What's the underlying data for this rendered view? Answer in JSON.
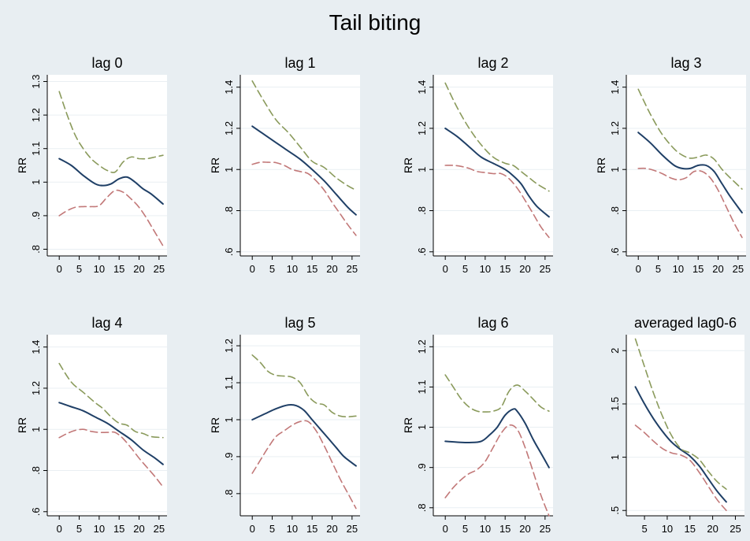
{
  "title": "Tail biting",
  "colors": {
    "background": "#e8eef2",
    "plot_area": "#ffffff",
    "grid": "#e9eff3",
    "estimate": "#1f3f66",
    "upper_ci": "#8a9a5b",
    "lower_ci": "#c27878"
  },
  "chart_data": [
    {
      "type": "line",
      "title": "lag 0",
      "ylabel": "RR",
      "xlabel": "",
      "xlim": [
        -3,
        27
      ],
      "ylim": [
        0.78,
        1.32
      ],
      "xticks": [
        0,
        5,
        10,
        15,
        20,
        25
      ],
      "xtick_labels": [
        "0",
        "5",
        "10",
        "15",
        "20",
        "25"
      ],
      "yticks": [
        0.8,
        0.9,
        1.0,
        1.1,
        1.2,
        1.3
      ],
      "ytick_labels": [
        ".8",
        ".9",
        "1",
        "1.1",
        "1.2",
        "1.3"
      ],
      "grid": true,
      "series": [
        {
          "style": "solid",
          "color": "#1f3f66",
          "x": [
            0,
            3,
            6,
            9,
            11,
            13,
            15,
            17,
            19,
            21,
            23,
            26
          ],
          "y": [
            1.07,
            1.05,
            1.02,
            0.995,
            0.99,
            0.995,
            1.01,
            1.015,
            1.0,
            0.98,
            0.965,
            0.935
          ]
        },
        {
          "style": "dashed",
          "color": "#8a9a5b",
          "x": [
            0,
            2,
            4,
            6,
            8,
            10,
            12,
            14,
            16,
            18,
            20,
            22,
            24,
            26
          ],
          "y": [
            1.27,
            1.2,
            1.14,
            1.1,
            1.07,
            1.05,
            1.035,
            1.03,
            1.06,
            1.075,
            1.07,
            1.07,
            1.075,
            1.08
          ]
        },
        {
          "style": "dashed",
          "color": "#c27878",
          "x": [
            0,
            2,
            4,
            6,
            8,
            10,
            12,
            14,
            16,
            18,
            20,
            22,
            24,
            26
          ],
          "y": [
            0.9,
            0.915,
            0.925,
            0.927,
            0.927,
            0.93,
            0.955,
            0.975,
            0.97,
            0.95,
            0.925,
            0.89,
            0.85,
            0.81
          ]
        }
      ]
    },
    {
      "type": "line",
      "title": "lag 1",
      "ylabel": "RR",
      "xlabel": "",
      "xlim": [
        -3,
        27
      ],
      "ylim": [
        0.58,
        1.46
      ],
      "xticks": [
        0,
        5,
        10,
        15,
        20,
        25
      ],
      "xtick_labels": [
        "0",
        "5",
        "10",
        "15",
        "20",
        "25"
      ],
      "yticks": [
        0.6,
        0.8,
        1.0,
        1.2,
        1.4
      ],
      "ytick_labels": [
        ".6",
        ".8",
        "1",
        "1.2",
        "1.4"
      ],
      "grid": true,
      "series": [
        {
          "style": "solid",
          "color": "#1f3f66",
          "x": [
            0,
            3,
            6,
            9,
            12,
            15,
            18,
            21,
            24,
            26
          ],
          "y": [
            1.21,
            1.17,
            1.13,
            1.09,
            1.05,
            1.0,
            0.945,
            0.88,
            0.815,
            0.78
          ]
        },
        {
          "style": "dashed",
          "color": "#8a9a5b",
          "x": [
            0,
            3,
            6,
            9,
            12,
            15,
            18,
            21,
            24,
            26
          ],
          "y": [
            1.43,
            1.33,
            1.24,
            1.18,
            1.11,
            1.04,
            1.01,
            0.96,
            0.92,
            0.9
          ]
        },
        {
          "style": "dashed",
          "color": "#c27878",
          "x": [
            0,
            2,
            4,
            6,
            8,
            10,
            12,
            14,
            16,
            18,
            20,
            22,
            24,
            26
          ],
          "y": [
            1.025,
            1.035,
            1.035,
            1.033,
            1.02,
            1.0,
            0.99,
            0.98,
            0.945,
            0.9,
            0.84,
            0.785,
            0.73,
            0.68
          ]
        }
      ]
    },
    {
      "type": "line",
      "title": "lag 2",
      "ylabel": "RR",
      "xlabel": "",
      "xlim": [
        -3,
        27
      ],
      "ylim": [
        0.58,
        1.46
      ],
      "xticks": [
        0,
        5,
        10,
        15,
        20,
        25
      ],
      "xtick_labels": [
        "0",
        "5",
        "10",
        "15",
        "20",
        "25"
      ],
      "yticks": [
        0.6,
        0.8,
        1.0,
        1.2,
        1.4
      ],
      "ytick_labels": [
        ".6",
        ".8",
        "1",
        "1.2",
        "1.4"
      ],
      "grid": true,
      "series": [
        {
          "style": "solid",
          "color": "#1f3f66",
          "x": [
            0,
            3,
            6,
            9,
            12,
            15,
            17,
            19,
            21,
            23,
            26
          ],
          "y": [
            1.2,
            1.16,
            1.11,
            1.06,
            1.03,
            1.0,
            0.97,
            0.93,
            0.87,
            0.82,
            0.77
          ]
        },
        {
          "style": "dashed",
          "color": "#8a9a5b",
          "x": [
            0,
            3,
            6,
            9,
            12,
            15,
            17,
            19,
            21,
            23,
            26
          ],
          "y": [
            1.42,
            1.3,
            1.2,
            1.12,
            1.06,
            1.03,
            1.02,
            0.99,
            0.96,
            0.93,
            0.895
          ]
        },
        {
          "style": "dashed",
          "color": "#c27878",
          "x": [
            0,
            2,
            4,
            6,
            8,
            10,
            12,
            14,
            16,
            18,
            20,
            22,
            24,
            26
          ],
          "y": [
            1.02,
            1.02,
            1.015,
            1.005,
            0.99,
            0.985,
            0.98,
            0.98,
            0.955,
            0.91,
            0.85,
            0.785,
            0.72,
            0.67
          ]
        }
      ]
    },
    {
      "type": "line",
      "title": "lag 3",
      "ylabel": "RR",
      "xlabel": "",
      "xlim": [
        -3,
        27
      ],
      "ylim": [
        0.58,
        1.46
      ],
      "xticks": [
        0,
        5,
        10,
        15,
        20,
        25
      ],
      "xtick_labels": [
        "0",
        "5",
        "10",
        "15",
        "20",
        "25"
      ],
      "yticks": [
        0.6,
        0.8,
        1.0,
        1.2,
        1.4
      ],
      "ytick_labels": [
        ".6",
        ".8",
        "1",
        "1.2",
        "1.4"
      ],
      "grid": true,
      "series": [
        {
          "style": "solid",
          "color": "#1f3f66",
          "x": [
            0,
            3,
            6,
            9,
            11,
            13,
            15,
            17,
            19,
            21,
            23,
            26
          ],
          "y": [
            1.18,
            1.13,
            1.07,
            1.02,
            1.005,
            1.005,
            1.02,
            1.02,
            0.99,
            0.93,
            0.87,
            0.79
          ]
        },
        {
          "style": "dashed",
          "color": "#8a9a5b",
          "x": [
            0,
            3,
            6,
            9,
            11,
            13,
            15,
            17,
            19,
            21,
            23,
            26
          ],
          "y": [
            1.39,
            1.27,
            1.17,
            1.1,
            1.07,
            1.055,
            1.06,
            1.07,
            1.05,
            1.0,
            0.96,
            0.905
          ]
        },
        {
          "style": "dashed",
          "color": "#c27878",
          "x": [
            0,
            2,
            4,
            6,
            8,
            10,
            12,
            14,
            16,
            18,
            20,
            22,
            24,
            26
          ],
          "y": [
            1.005,
            1.005,
            0.995,
            0.98,
            0.96,
            0.95,
            0.96,
            0.99,
            0.99,
            0.96,
            0.9,
            0.82,
            0.74,
            0.67
          ]
        }
      ]
    },
    {
      "type": "line",
      "title": "lag 4",
      "ylabel": "RR",
      "xlabel": "",
      "xlim": [
        -3,
        27
      ],
      "ylim": [
        0.58,
        1.46
      ],
      "xticks": [
        0,
        5,
        10,
        15,
        20,
        25
      ],
      "xtick_labels": [
        "0",
        "5",
        "10",
        "15",
        "20",
        "25"
      ],
      "yticks": [
        0.6,
        0.8,
        1.0,
        1.2,
        1.4
      ],
      "ytick_labels": [
        ".6",
        ".8",
        "1",
        "1.2",
        "1.4"
      ],
      "grid": true,
      "series": [
        {
          "style": "solid",
          "color": "#1f3f66",
          "x": [
            0,
            3,
            6,
            9,
            12,
            15,
            18,
            21,
            24,
            26
          ],
          "y": [
            1.13,
            1.11,
            1.09,
            1.06,
            1.03,
            0.99,
            0.95,
            0.9,
            0.86,
            0.83
          ]
        },
        {
          "style": "dashed",
          "color": "#8a9a5b",
          "x": [
            0,
            3,
            6,
            9,
            11,
            13,
            15,
            17,
            19,
            21,
            23,
            26
          ],
          "y": [
            1.32,
            1.23,
            1.18,
            1.13,
            1.1,
            1.06,
            1.03,
            1.02,
            0.99,
            0.98,
            0.965,
            0.96
          ]
        },
        {
          "style": "dashed",
          "color": "#c27878",
          "x": [
            0,
            2,
            4,
            6,
            8,
            10,
            12,
            14,
            16,
            18,
            20,
            22,
            24,
            26
          ],
          "y": [
            0.96,
            0.98,
            0.995,
            1.0,
            0.99,
            0.985,
            0.985,
            0.985,
            0.955,
            0.91,
            0.86,
            0.815,
            0.77,
            0.72
          ]
        }
      ]
    },
    {
      "type": "line",
      "title": "lag 5",
      "ylabel": "RR",
      "xlabel": "",
      "xlim": [
        -3,
        27
      ],
      "ylim": [
        0.74,
        1.23
      ],
      "xticks": [
        0,
        5,
        10,
        15,
        20,
        25
      ],
      "xtick_labels": [
        "0",
        "5",
        "10",
        "15",
        "20",
        "25"
      ],
      "yticks": [
        0.8,
        0.9,
        1.0,
        1.1,
        1.2
      ],
      "ytick_labels": [
        ".8",
        ".9",
        "1",
        "1.1",
        "1.2"
      ],
      "grid": true,
      "series": [
        {
          "style": "solid",
          "color": "#1f3f66",
          "x": [
            0,
            3,
            6,
            9,
            11,
            13,
            15,
            17,
            19,
            21,
            23,
            26
          ],
          "y": [
            1.0,
            1.015,
            1.03,
            1.04,
            1.038,
            1.025,
            1.0,
            0.975,
            0.95,
            0.925,
            0.9,
            0.875
          ]
        },
        {
          "style": "dashed",
          "color": "#8a9a5b",
          "x": [
            0,
            2,
            4,
            6,
            8,
            10,
            12,
            14,
            16,
            18,
            20,
            22,
            24,
            26
          ],
          "y": [
            1.175,
            1.155,
            1.13,
            1.12,
            1.118,
            1.115,
            1.1,
            1.065,
            1.045,
            1.04,
            1.02,
            1.01,
            1.008,
            1.01
          ]
        },
        {
          "style": "dashed",
          "color": "#c27878",
          "x": [
            0,
            2,
            4,
            6,
            8,
            10,
            12,
            14,
            16,
            18,
            20,
            22,
            24,
            26
          ],
          "y": [
            0.855,
            0.89,
            0.925,
            0.955,
            0.97,
            0.985,
            0.995,
            0.995,
            0.97,
            0.93,
            0.885,
            0.84,
            0.8,
            0.76
          ]
        }
      ]
    },
    {
      "type": "line",
      "title": "lag 6",
      "ylabel": "RR",
      "xlabel": "",
      "xlim": [
        -3,
        27
      ],
      "ylim": [
        0.78,
        1.23
      ],
      "xticks": [
        0,
        5,
        10,
        15,
        20,
        25
      ],
      "xtick_labels": [
        "0",
        "5",
        "10",
        "15",
        "20",
        "25"
      ],
      "yticks": [
        0.8,
        0.9,
        1.0,
        1.1,
        1.2
      ],
      "ytick_labels": [
        ".8",
        ".9",
        "1",
        "1.1",
        "1.2"
      ],
      "grid": true,
      "series": [
        {
          "style": "solid",
          "color": "#1f3f66",
          "x": [
            0,
            3,
            6,
            9,
            11,
            13,
            15,
            17,
            18,
            20,
            22,
            24,
            26
          ],
          "y": [
            0.965,
            0.963,
            0.962,
            0.965,
            0.98,
            1.0,
            1.03,
            1.045,
            1.04,
            1.01,
            0.97,
            0.935,
            0.9
          ]
        },
        {
          "style": "dashed",
          "color": "#8a9a5b",
          "x": [
            0,
            2,
            4,
            6,
            8,
            10,
            12,
            14,
            16,
            18,
            20,
            22,
            24,
            26
          ],
          "y": [
            1.13,
            1.1,
            1.07,
            1.05,
            1.04,
            1.038,
            1.04,
            1.05,
            1.09,
            1.105,
            1.09,
            1.07,
            1.05,
            1.04
          ]
        },
        {
          "style": "dashed",
          "color": "#c27878",
          "x": [
            0,
            2,
            4,
            6,
            8,
            10,
            12,
            14,
            16,
            18,
            20,
            22,
            24,
            26
          ],
          "y": [
            0.825,
            0.85,
            0.87,
            0.885,
            0.895,
            0.915,
            0.95,
            0.985,
            1.005,
            0.995,
            0.95,
            0.89,
            0.83,
            0.78
          ]
        }
      ]
    },
    {
      "type": "line",
      "title": "averaged lag0-6",
      "ylabel": "",
      "xlabel": "",
      "xlim": [
        1,
        27
      ],
      "ylim": [
        0.45,
        2.15
      ],
      "xticks": [
        5,
        10,
        15,
        20,
        25
      ],
      "xtick_labels": [
        "5",
        "10",
        "15",
        "20",
        "25"
      ],
      "yticks": [
        0.5,
        1.0,
        1.5,
        2.0
      ],
      "ytick_labels": [
        ".5",
        "1",
        "1.5",
        "2"
      ],
      "grid": true,
      "series": [
        {
          "style": "solid",
          "color": "#1f3f66",
          "x": [
            3,
            5,
            7,
            9,
            11,
            13,
            15,
            17,
            19,
            21,
            23
          ],
          "y": [
            1.66,
            1.5,
            1.36,
            1.24,
            1.14,
            1.07,
            1.01,
            0.92,
            0.8,
            0.68,
            0.58
          ]
        },
        {
          "style": "dashed",
          "color": "#8a9a5b",
          "x": [
            3,
            5,
            7,
            9,
            11,
            13,
            15,
            17,
            19,
            21,
            23
          ],
          "y": [
            2.11,
            1.85,
            1.6,
            1.38,
            1.2,
            1.08,
            1.04,
            0.98,
            0.87,
            0.77,
            0.7
          ]
        },
        {
          "style": "dashed",
          "color": "#c27878",
          "x": [
            3,
            5,
            7,
            9,
            11,
            13,
            15,
            17,
            19,
            21,
            23
          ],
          "y": [
            1.3,
            1.23,
            1.15,
            1.08,
            1.04,
            1.02,
            0.97,
            0.86,
            0.73,
            0.6,
            0.5
          ]
        }
      ]
    }
  ]
}
